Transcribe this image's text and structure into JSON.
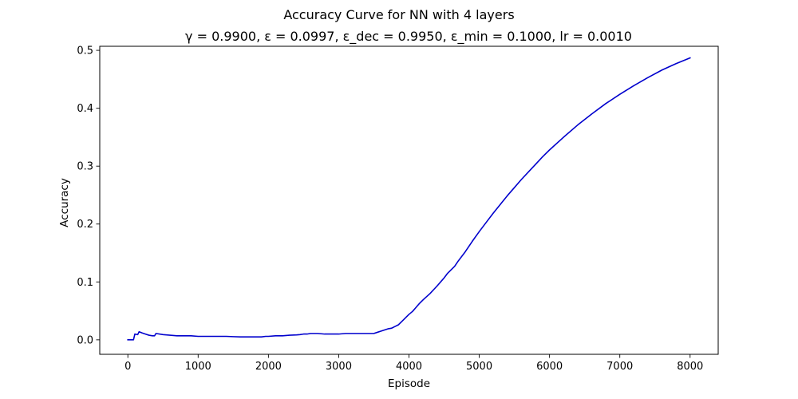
{
  "chart_data": {
    "type": "line",
    "title": "Accuracy Curve for NN with 4 layers",
    "subtitle": "γ = 0.9900, ε = 0.0997, ε_dec = 0.9950, ε_min = 0.1000, lr = 0.0010",
    "xlabel": "Episode",
    "ylabel": "Accuracy",
    "xlim": [
      -400,
      8400
    ],
    "ylim": [
      -0.025,
      0.507
    ],
    "xticks": [
      0,
      1000,
      2000,
      3000,
      4000,
      5000,
      6000,
      7000,
      8000
    ],
    "xtick_labels": [
      "0",
      "1000",
      "2000",
      "3000",
      "4000",
      "5000",
      "6000",
      "7000",
      "8000"
    ],
    "yticks": [
      0.0,
      0.1,
      0.2,
      0.3,
      0.4,
      0.5
    ],
    "ytick_labels": [
      "0.0",
      "0.1",
      "0.2",
      "0.3",
      "0.4",
      "0.5"
    ],
    "grid": false,
    "legend": "none",
    "series": [
      {
        "color": "#0000cd",
        "x": [
          0,
          60,
          80,
          100,
          140,
          160,
          200,
          250,
          300,
          350,
          380,
          400,
          500,
          600,
          700,
          760,
          800,
          900,
          1000,
          1060,
          1100,
          1200,
          1240,
          1300,
          1400,
          1500,
          1600,
          1640,
          1700,
          1800,
          1900,
          1960,
          2000,
          2100,
          2200,
          2300,
          2400,
          2450,
          2500,
          2550,
          2600,
          2700,
          2800,
          2900,
          3000,
          3100,
          3200,
          3250,
          3300,
          3400,
          3500,
          3550,
          3600,
          3700,
          3750,
          3800,
          3850,
          3900,
          3950,
          4000,
          4050,
          4100,
          4150,
          4200,
          4300,
          4400,
          4450,
          4500,
          4550,
          4600,
          4650,
          4700,
          4800,
          4900,
          5000,
          5100,
          5200,
          5300,
          5400,
          5500,
          5600,
          5700,
          5800,
          5900,
          6000,
          6200,
          6400,
          6600,
          6800,
          7000,
          7200,
          7400,
          7600,
          7800,
          8000
        ],
        "y": [
          0.0,
          0.0,
          0.0,
          0.01,
          0.009,
          0.014,
          0.012,
          0.01,
          0.008,
          0.007,
          0.007,
          0.011,
          0.009,
          0.008,
          0.007,
          0.007,
          0.007,
          0.007,
          0.006,
          0.006,
          0.006,
          0.006,
          0.006,
          0.006,
          0.006,
          0.0055,
          0.005,
          0.005,
          0.005,
          0.005,
          0.005,
          0.006,
          0.006,
          0.007,
          0.007,
          0.008,
          0.0085,
          0.009,
          0.01,
          0.01,
          0.011,
          0.011,
          0.01,
          0.01,
          0.01,
          0.011,
          0.011,
          0.011,
          0.011,
          0.011,
          0.011,
          0.013,
          0.015,
          0.019,
          0.02,
          0.023,
          0.026,
          0.032,
          0.038,
          0.044,
          0.049,
          0.056,
          0.063,
          0.069,
          0.08,
          0.093,
          0.1,
          0.107,
          0.115,
          0.121,
          0.127,
          0.136,
          0.152,
          0.17,
          0.187,
          0.203,
          0.219,
          0.234,
          0.249,
          0.263,
          0.277,
          0.29,
          0.303,
          0.316,
          0.328,
          0.35,
          0.371,
          0.39,
          0.408,
          0.424,
          0.439,
          0.453,
          0.466,
          0.477,
          0.487
        ]
      }
    ]
  }
}
